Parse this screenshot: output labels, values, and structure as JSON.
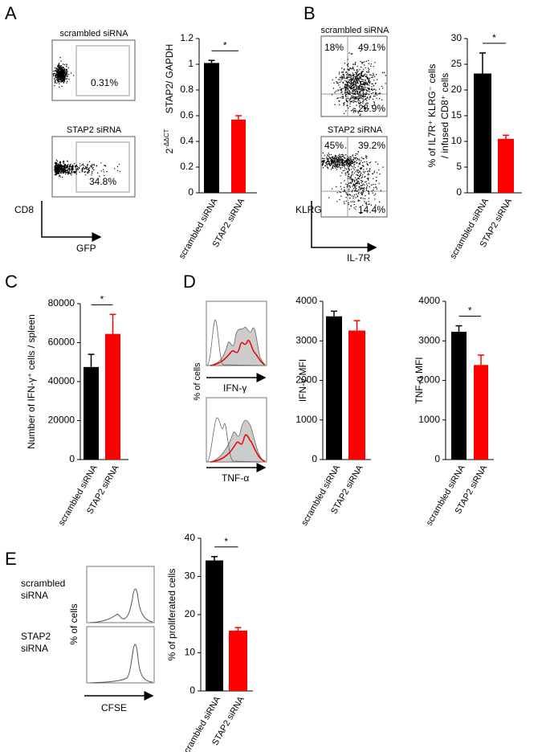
{
  "panel_labels": [
    "A",
    "B",
    "C",
    "D",
    "E"
  ],
  "flow": {
    "A": {
      "plots": [
        {
          "title": "scrambled siRNA",
          "gate": "0.31%"
        },
        {
          "title": "STAP2 siRNA",
          "gate": "34.8%"
        }
      ],
      "y_axis": "CD8",
      "x_axis": "GFP"
    },
    "B": {
      "plots": [
        {
          "title": "scrambled siRNA",
          "quadrants": [
            "18%",
            "49.1%",
            "25.9%"
          ]
        },
        {
          "title": "STAP2 siRNA",
          "quadrants": [
            "45%",
            "39.2%",
            "14.4%"
          ]
        }
      ],
      "y_axis": "KLRG",
      "x_axis": "IL-7R"
    },
    "D": {
      "y_axis": "% of cells",
      "markers": [
        "IFN-γ",
        "TNF-α"
      ]
    },
    "E": {
      "y_axis": "% of cells",
      "conditions": [
        [
          "scrambled",
          "siRNA"
        ],
        [
          "STAP2",
          "siRNA"
        ]
      ],
      "x_axis": "CFSE"
    }
  },
  "chart_data": [
    {
      "type": "bar",
      "y_label": [
        "STAP2/ GAPDH"
      ],
      "y_label_note": {
        "base": "2",
        "sup": "-ΔΔCT"
      },
      "categories": [
        "scrambled siRNA",
        "STAP2 siRNA"
      ],
      "values": [
        1.01,
        0.57
      ],
      "errors": [
        0.02,
        0.03
      ],
      "colors": [
        "#000000",
        "#ff0000"
      ],
      "ylim": [
        0,
        1.2
      ],
      "yticks": [
        0,
        0.2,
        0.4,
        0.6,
        0.8,
        1,
        1.2
      ],
      "significance": "*"
    },
    {
      "type": "bar",
      "y_label": [
        "% of  IL7R⁺ KLRG⁻ cells",
        "/ infused CD8⁺ cells"
      ],
      "categories": [
        "scrambled siRNA",
        "STAP2 siRNA"
      ],
      "values": [
        23.2,
        10.5
      ],
      "errors": [
        4,
        0.7
      ],
      "colors": [
        "#000000",
        "#ff0000"
      ],
      "ylim": [
        0,
        30
      ],
      "yticks": [
        0,
        5,
        10,
        15,
        20,
        25,
        30
      ],
      "significance": "*"
    },
    {
      "type": "bar",
      "y_label": [
        "Number of IFN-γ⁺ cells / spleen"
      ],
      "categories": [
        "scrambled siRNA",
        "STAP2 siRNA"
      ],
      "values": [
        47500,
        64500
      ],
      "errors": [
        6500,
        10000
      ],
      "colors": [
        "#000000",
        "#ff0000"
      ],
      "ylim": [
        0,
        80000
      ],
      "yticks": [
        0,
        20000,
        40000,
        60000,
        80000
      ],
      "significance": "*"
    },
    {
      "type": "bar",
      "y_label": [
        "IFN-γ MFI"
      ],
      "categories": [
        "scrambled siRNA",
        "STAP2 siRNA"
      ],
      "values": [
        3620,
        3260
      ],
      "errors": [
        130,
        250
      ],
      "colors": [
        "#000000",
        "#ff0000"
      ],
      "ylim": [
        0,
        4000
      ],
      "yticks": [
        0,
        1000,
        2000,
        3000,
        4000
      ]
    },
    {
      "type": "bar",
      "y_label": [
        "TNF-α MFI"
      ],
      "categories": [
        "scrambled siRNA",
        "STAP2 siRNA"
      ],
      "values": [
        3230,
        2390
      ],
      "errors": [
        150,
        250
      ],
      "colors": [
        "#000000",
        "#ff0000"
      ],
      "ylim": [
        0,
        4000
      ],
      "yticks": [
        0,
        1000,
        2000,
        3000,
        4000
      ],
      "significance": "*"
    },
    {
      "type": "bar",
      "y_label": [
        "% of proliferated cells"
      ],
      "categories": [
        "scrambled siRNA",
        "STAP2 siRNA"
      ],
      "values": [
        34.2,
        15.8
      ],
      "errors": [
        1,
        0.8
      ],
      "colors": [
        "#000000",
        "#ff0000"
      ],
      "ylim": [
        0,
        40
      ],
      "yticks": [
        0,
        10,
        20,
        30,
        40
      ],
      "significance": "*"
    }
  ]
}
